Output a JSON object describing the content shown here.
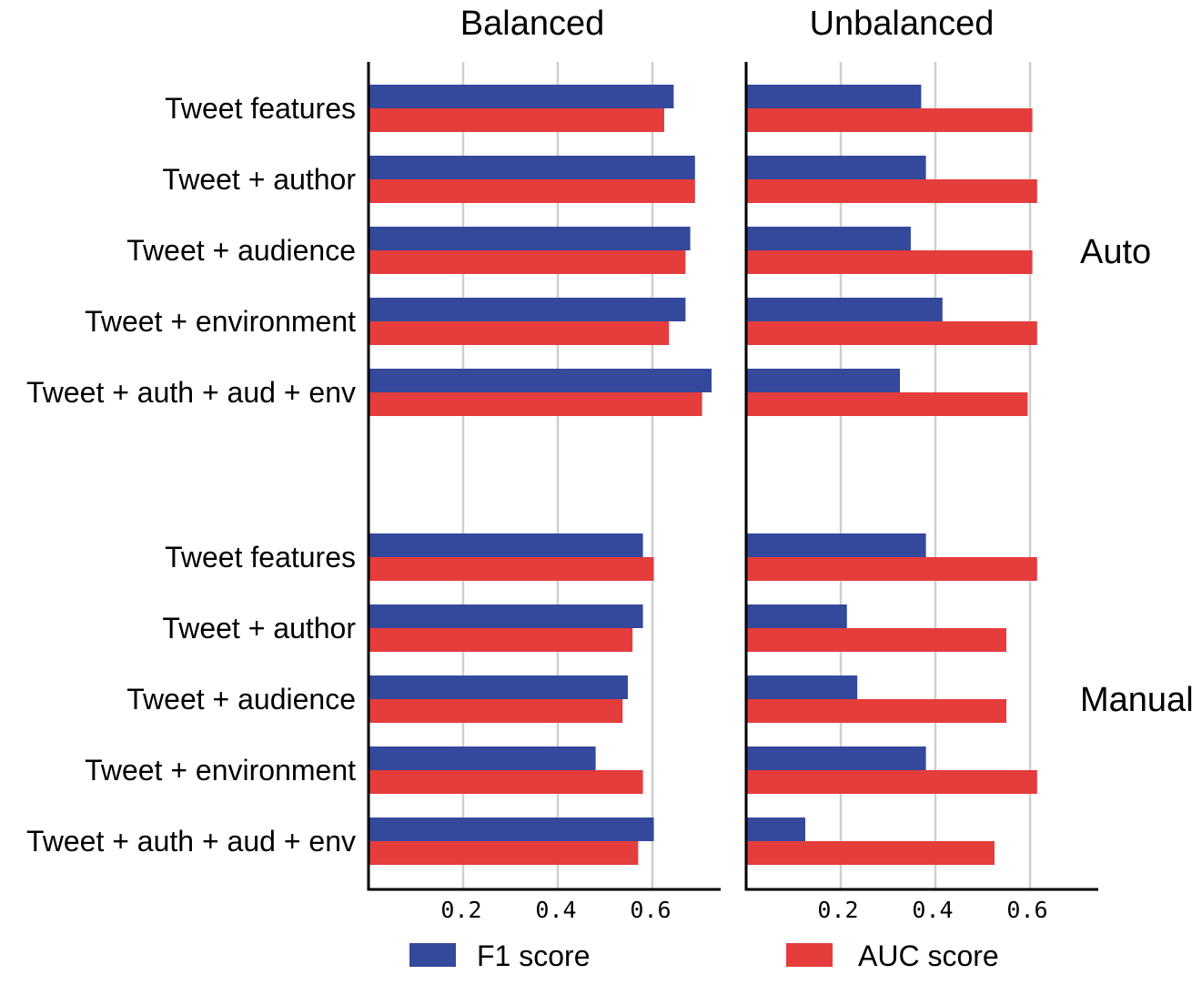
{
  "chart_data": {
    "type": "bar",
    "orientation": "horizontal",
    "panels": [
      "Balanced",
      "Unbalanced"
    ],
    "groups": [
      "Auto",
      "Manual"
    ],
    "categories": [
      "Tweet features",
      "Tweet + author",
      "Tweet + audience",
      "Tweet + environment",
      "Tweet + auth + aud + env"
    ],
    "series": [
      {
        "name": "F1 score",
        "color": "#34489c"
      },
      {
        "name": "AUC score",
        "color": "#e53c3c"
      }
    ],
    "values": {
      "Balanced": {
        "Auto": {
          "F1 score": [
            0.645,
            0.69,
            0.68,
            0.67,
            0.725
          ],
          "AUC score": [
            0.625,
            0.69,
            0.67,
            0.635,
            0.705
          ]
        },
        "Manual": {
          "F1 score": [
            0.58,
            0.58,
            0.548,
            0.48,
            0.603
          ],
          "AUC score": [
            0.603,
            0.558,
            0.537,
            0.58,
            0.57
          ]
        }
      },
      "Unbalanced": {
        "Auto": {
          "F1 score": [
            0.37,
            0.38,
            0.348,
            0.415,
            0.325
          ],
          "AUC score": [
            0.605,
            0.615,
            0.605,
            0.615,
            0.595
          ]
        },
        "Manual": {
          "F1 score": [
            0.38,
            0.213,
            0.235,
            0.38,
            0.125
          ],
          "AUC score": [
            0.615,
            0.55,
            0.55,
            0.615,
            0.525
          ]
        }
      }
    },
    "xticks": [
      "0.2",
      "0.4",
      "0.6"
    ],
    "xtick_values": [
      0.2,
      0.4,
      0.6
    ],
    "xlim": [
      0,
      0.75
    ],
    "grid": true,
    "legend": "bottom"
  }
}
